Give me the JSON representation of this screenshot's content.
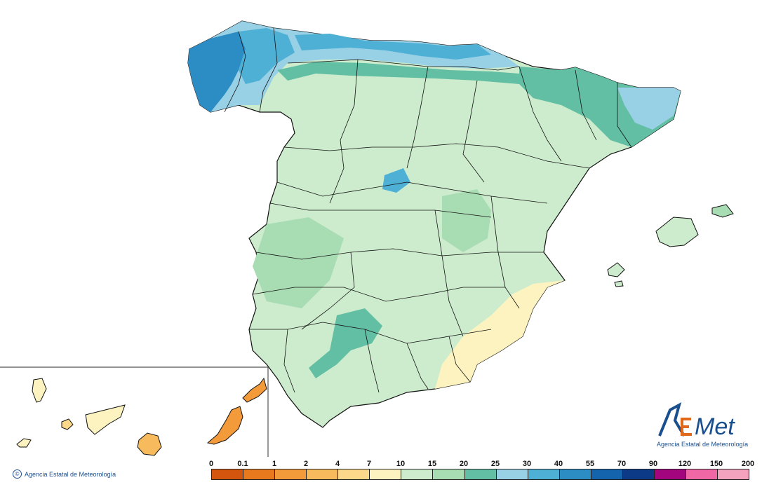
{
  "map": {
    "agency_logo_text": "AEmet",
    "agency_subtitle": "Agencia Estatal de Meteorología",
    "copyright": "Agencia Estatal de Meteorología"
  },
  "legend": {
    "breaks": [
      "0",
      "0.1",
      "1",
      "2",
      "4",
      "7",
      "10",
      "15",
      "20",
      "25",
      "30",
      "40",
      "55",
      "70",
      "90",
      "120",
      "150",
      "200"
    ],
    "colors": [
      "#d4550e",
      "#e8791d",
      "#f39a3a",
      "#f7ba5c",
      "#fbd88a",
      "#fdf3c0",
      "#cdeccd",
      "#a8dcb2",
      "#62bfa3",
      "#98d0e6",
      "#4fb0d6",
      "#2c8cc4",
      "#1464ad",
      "#0c3a86",
      "#a3057f",
      "#f067a5",
      "#f4a3bf"
    ]
  },
  "colors": {
    "border": "#111111",
    "water_blue": "#2f7fbf"
  }
}
